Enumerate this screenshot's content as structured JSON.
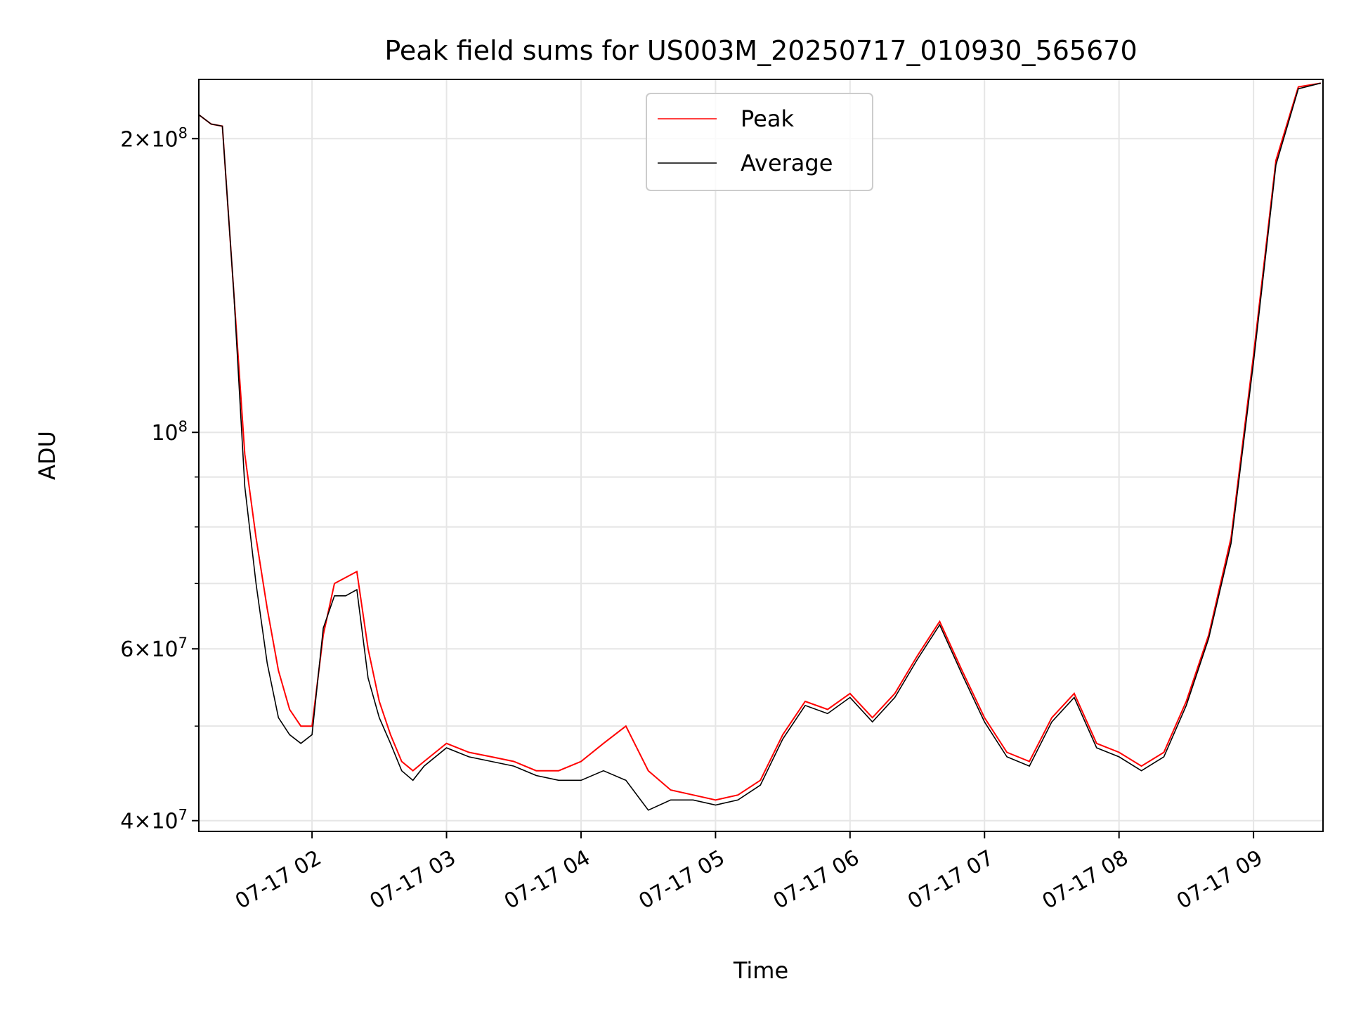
{
  "chart_data": {
    "type": "line",
    "title": "Peak field sums for US003M_20250717_010930_565670",
    "xlabel": "Time",
    "ylabel": "ADU",
    "yscale": "log",
    "xlim": [
      "2025-07-17 01:09:30",
      "2025-07-17 09:31:00"
    ],
    "ylim": [
      39000000,
      230000000
    ],
    "grid": true,
    "legend_position": "top-center",
    "x_ticks": [
      "07-17 02",
      "07-17 03",
      "07-17 04",
      "07-17 05",
      "07-17 06",
      "07-17 07",
      "07-17 08",
      "07-17 09"
    ],
    "y_ticks": [
      {
        "value": 40000000,
        "mant": "4",
        "exp": "7"
      },
      {
        "value": 60000000,
        "mant": "6",
        "exp": "7"
      },
      {
        "value": 100000000,
        "mant": "",
        "exp": "8"
      },
      {
        "value": 200000000,
        "mant": "2",
        "exp": "8"
      }
    ],
    "series": [
      {
        "name": "Peak",
        "color": "#ff0000",
        "x": [
          "01:09",
          "01:15",
          "01:20",
          "01:25",
          "01:30",
          "01:35",
          "01:40",
          "01:45",
          "01:50",
          "01:55",
          "02:00",
          "02:05",
          "02:10",
          "02:15",
          "02:20",
          "02:25",
          "02:30",
          "02:35",
          "02:40",
          "02:45",
          "02:50",
          "03:00",
          "03:10",
          "03:20",
          "03:30",
          "03:40",
          "03:50",
          "04:00",
          "04:10",
          "04:20",
          "04:30",
          "04:40",
          "04:50",
          "05:00",
          "05:10",
          "05:20",
          "05:30",
          "05:40",
          "05:50",
          "06:00",
          "06:10",
          "06:20",
          "06:30",
          "06:40",
          "06:50",
          "07:00",
          "07:10",
          "07:20",
          "07:30",
          "07:40",
          "07:50",
          "08:00",
          "08:10",
          "08:20",
          "08:30",
          "08:40",
          "08:50",
          "09:00",
          "09:10",
          "09:20",
          "09:30"
        ],
        "values": [
          212000000,
          207000000,
          206000000,
          140000000,
          95000000,
          78000000,
          66000000,
          57000000,
          52000000,
          50000000,
          50000000,
          62000000,
          70000000,
          71000000,
          72000000,
          60000000,
          53000000,
          49000000,
          46000000,
          45000000,
          46000000,
          48000000,
          47000000,
          46500000,
          46000000,
          45000000,
          45000000,
          46000000,
          48000000,
          50000000,
          45000000,
          43000000,
          42500000,
          42000000,
          42500000,
          44000000,
          49000000,
          53000000,
          52000000,
          54000000,
          51000000,
          54000000,
          59000000,
          64000000,
          57000000,
          51000000,
          47000000,
          46000000,
          51000000,
          54000000,
          48000000,
          47000000,
          45500000,
          47000000,
          53000000,
          62000000,
          78000000,
          120000000,
          190000000,
          226000000,
          228000000
        ]
      },
      {
        "name": "Average",
        "color": "#000000",
        "x": [
          "01:09",
          "01:15",
          "01:20",
          "01:25",
          "01:30",
          "01:35",
          "01:40",
          "01:45",
          "01:50",
          "01:55",
          "02:00",
          "02:05",
          "02:10",
          "02:15",
          "02:20",
          "02:25",
          "02:30",
          "02:35",
          "02:40",
          "02:45",
          "02:50",
          "03:00",
          "03:10",
          "03:20",
          "03:30",
          "03:40",
          "03:50",
          "04:00",
          "04:10",
          "04:20",
          "04:30",
          "04:40",
          "04:50",
          "05:00",
          "05:10",
          "05:20",
          "05:30",
          "05:40",
          "05:50",
          "06:00",
          "06:10",
          "06:20",
          "06:30",
          "06:40",
          "06:50",
          "07:00",
          "07:10",
          "07:20",
          "07:30",
          "07:40",
          "07:50",
          "08:00",
          "08:10",
          "08:20",
          "08:30",
          "08:40",
          "08:50",
          "09:00",
          "09:10",
          "09:20",
          "09:30"
        ],
        "values": [
          212000000,
          207000000,
          206000000,
          140000000,
          88000000,
          70000000,
          58000000,
          51000000,
          49000000,
          48000000,
          49000000,
          63000000,
          68000000,
          68000000,
          69000000,
          56000000,
          51000000,
          48000000,
          45000000,
          44000000,
          45500000,
          47500000,
          46500000,
          46000000,
          45500000,
          44500000,
          44000000,
          44000000,
          45000000,
          44000000,
          41000000,
          42000000,
          42000000,
          41500000,
          42000000,
          43500000,
          48500000,
          52500000,
          51500000,
          53500000,
          50500000,
          53500000,
          58500000,
          63500000,
          56500000,
          50500000,
          46500000,
          45500000,
          50500000,
          53500000,
          47500000,
          46500000,
          45000000,
          46500000,
          52500000,
          61500000,
          77000000,
          118000000,
          188000000,
          225000000,
          228000000
        ]
      }
    ]
  }
}
